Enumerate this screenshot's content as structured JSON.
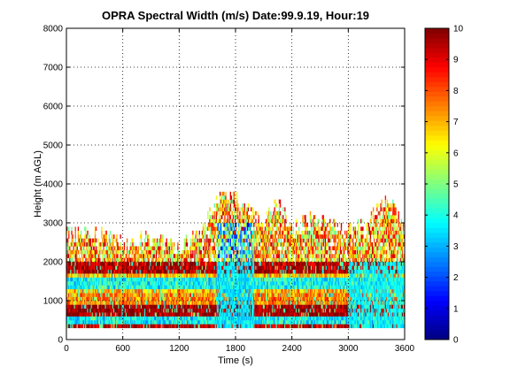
{
  "chart_data": {
    "type": "heatmap",
    "title": "OPRA Spectral Width (m/s)  Date:99.9.19, Hour:19",
    "xlabel": "Time (s)",
    "ylabel": "Height (m AGL)",
    "xlim": [
      0,
      3600
    ],
    "ylim": [
      0,
      8000
    ],
    "xticks": [
      0,
      600,
      1200,
      1800,
      2400,
      3000,
      3600
    ],
    "yticks": [
      0,
      1000,
      2000,
      3000,
      4000,
      5000,
      6000,
      7000,
      8000
    ],
    "grid": true,
    "colormap": "jet",
    "colorbar": {
      "range": [
        0,
        10
      ],
      "ticks": [
        0,
        1,
        2,
        3,
        4,
        5,
        6,
        7,
        8,
        9,
        10
      ],
      "placement": "right"
    },
    "height_layers_m": [
      300,
      400,
      500,
      600,
      700,
      800,
      900,
      1000,
      1100,
      1200,
      1300,
      1400,
      1500,
      1600,
      1700,
      1800,
      1900,
      2000,
      2100,
      2200,
      2300,
      2400,
      2500,
      2600,
      2700,
      2800,
      2900,
      3000,
      3100,
      3200,
      3300,
      3400,
      3500,
      3600,
      3700
    ],
    "layer_thickness_m": 100,
    "profile_interval_s": 10,
    "data_top_height_m": [
      {
        "time_s": 0,
        "height_m": 2600
      },
      {
        "time_s": 300,
        "height_m": 2700
      },
      {
        "time_s": 600,
        "height_m": 2400
      },
      {
        "time_s": 900,
        "height_m": 2500
      },
      {
        "time_s": 1200,
        "height_m": 2300
      },
      {
        "time_s": 1400,
        "height_m": 2600
      },
      {
        "time_s": 1550,
        "height_m": 3200
      },
      {
        "time_s": 1650,
        "height_m": 3700
      },
      {
        "time_s": 1800,
        "height_m": 3500
      },
      {
        "time_s": 1950,
        "height_m": 3200
      },
      {
        "time_s": 2100,
        "height_m": 3000
      },
      {
        "time_s": 2250,
        "height_m": 3400
      },
      {
        "time_s": 2400,
        "height_m": 2800
      },
      {
        "time_s": 2600,
        "height_m": 3000
      },
      {
        "time_s": 2850,
        "height_m": 2900
      },
      {
        "time_s": 3000,
        "height_m": 2700
      },
      {
        "time_s": 3200,
        "height_m": 2900
      },
      {
        "time_s": 3400,
        "height_m": 3600
      },
      {
        "time_s": 3550,
        "height_m": 3000
      },
      {
        "time_s": 3600,
        "height_m": 2700
      }
    ],
    "layer_patterns": [
      {
        "from_m": 300,
        "to_m": 400,
        "value": 9.5,
        "description": "dark red band"
      },
      {
        "from_m": 400,
        "to_m": 600,
        "value": 3.7,
        "description": "cyan band"
      },
      {
        "from_m": 600,
        "to_m": 900,
        "value": 9.8,
        "description": "dark red band"
      },
      {
        "from_m": 900,
        "to_m": 1200,
        "value": 7.5,
        "description": "mixed orange / red"
      },
      {
        "from_m": 1300,
        "to_m": 1600,
        "value": 3.8,
        "description": "cyan band"
      },
      {
        "from_m": 1700,
        "to_m": 2000,
        "value": 9.6,
        "description": "dark red band"
      },
      {
        "from_m": 2000,
        "to_m": 3700,
        "value": 7.0,
        "description": "scattered red / orange / yellow"
      }
    ],
    "low_width_regions": [
      {
        "time_s": [
          1600,
          2000
        ],
        "height_m": [
          300,
          3000
        ],
        "value": 3.5
      },
      {
        "time_s": [
          3000,
          3600
        ],
        "height_m": [
          300,
          2000
        ],
        "value": 3.8
      }
    ]
  }
}
